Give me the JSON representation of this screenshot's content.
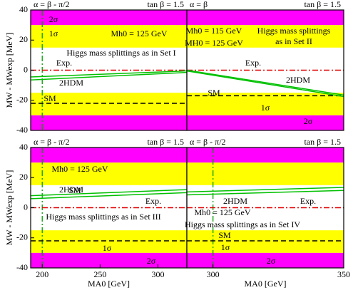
{
  "chart_data": [
    {
      "type": "line",
      "title": "α = β - π/2",
      "title_right": "tan β = 1.5",
      "ylabel": "MW - MWexp [MeV]",
      "xlim": [
        190,
        325
      ],
      "ylim": [
        -40,
        40
      ],
      "yticks": [
        -40,
        -20,
        0,
        20,
        40
      ],
      "x": [
        190,
        325
      ],
      "vline": 200,
      "bands": [
        {
          "label": "1σ",
          "limit": 15,
          "color": "#ffff00"
        },
        {
          "label": "2σ",
          "limit": 30,
          "color": "#ff00ff"
        }
      ],
      "series": [
        {
          "name": "Exp.",
          "color": "#e00000",
          "values": [
            0,
            0
          ]
        },
        {
          "name": "SM",
          "color": "#000000",
          "values": [
            -22,
            -22
          ]
        },
        {
          "name": "2HDM",
          "color": "#00c000",
          "values": [
            -6.5,
            -1.5
          ],
          "upper": [
            -4.5,
            -0.5
          ]
        }
      ],
      "annotations": [
        "Mh0 = 125 GeV",
        "Higgs mass splittings as in Set I"
      ]
    },
    {
      "type": "line",
      "title": "α = β",
      "title_right": "tan β = 1.5",
      "xlim": [
        290,
        350
      ],
      "ylim": [
        -40,
        40
      ],
      "x": [
        290,
        350
      ],
      "bands": [
        {
          "label": "1σ",
          "limit": 15,
          "color": "#ffff00"
        },
        {
          "label": "2σ",
          "limit": 30,
          "color": "#ff00ff"
        }
      ],
      "series": [
        {
          "name": "Exp.",
          "color": "#e00000",
          "values": [
            0,
            0
          ]
        },
        {
          "name": "SM",
          "color": "#000000",
          "values": [
            -17,
            -17
          ]
        },
        {
          "name": "2HDM",
          "color": "#00c000",
          "values": [
            -0.5,
            -17.5
          ],
          "upper": [
            0,
            -16.5
          ]
        }
      ],
      "annotations": [
        "Mh0 = 115 GeV",
        "MH0 = 125 GeV",
        "Higgs mass splittings",
        "as in Set II"
      ]
    },
    {
      "type": "line",
      "title": "α = β - π/2",
      "title_right": "tan β = 1.5",
      "ylabel": "MW - MWexp [MeV]",
      "xlabel": "MA0 [GeV]",
      "xlim": [
        190,
        325
      ],
      "ylim": [
        -40,
        40
      ],
      "yticks": [
        -40,
        -20,
        0,
        20,
        40
      ],
      "xticks": [
        200,
        250,
        300
      ],
      "x": [
        190,
        325
      ],
      "vline": 200,
      "bands": [
        {
          "label": "1σ",
          "limit": 15,
          "color": "#ffff00"
        },
        {
          "label": "2σ",
          "limit": 30,
          "color": "#ff00ff"
        }
      ],
      "series": [
        {
          "name": "Exp.",
          "color": "#e00000",
          "values": [
            0,
            0
          ]
        },
        {
          "name": "SM",
          "color": "#000000",
          "values": [
            -22,
            -22
          ]
        },
        {
          "name": "2HDM",
          "color": "#00c000",
          "values": [
            6,
            10
          ],
          "upper": [
            8,
            12
          ]
        }
      ],
      "annotations": [
        "Mh0 = 125 GeV",
        "Higgs mass splittings as in Set III"
      ]
    },
    {
      "type": "line",
      "title": "α = β - π/2",
      "title_right": "tan β = 1.5",
      "xlabel": "MA0 [GeV]",
      "xlim": [
        290,
        350
      ],
      "ylim": [
        -40,
        40
      ],
      "xticks": [
        300,
        350
      ],
      "x": [
        290,
        350
      ],
      "vline": 300,
      "bands": [
        {
          "label": "1σ",
          "limit": 15,
          "color": "#ffff00"
        },
        {
          "label": "2σ",
          "limit": 30,
          "color": "#ff00ff"
        }
      ],
      "series": [
        {
          "name": "Exp.",
          "color": "#e00000",
          "values": [
            0,
            0
          ]
        },
        {
          "name": "SM",
          "color": "#000000",
          "values": [
            -22,
            -22
          ]
        },
        {
          "name": "2HDM",
          "color": "#00c000",
          "values": [
            8.5,
            11.5
          ],
          "upper": [
            10.5,
            13.5
          ]
        }
      ],
      "annotations": [
        "Mh0 = 125 GeV",
        "Higgs mass splittings as in Set IV"
      ]
    }
  ]
}
